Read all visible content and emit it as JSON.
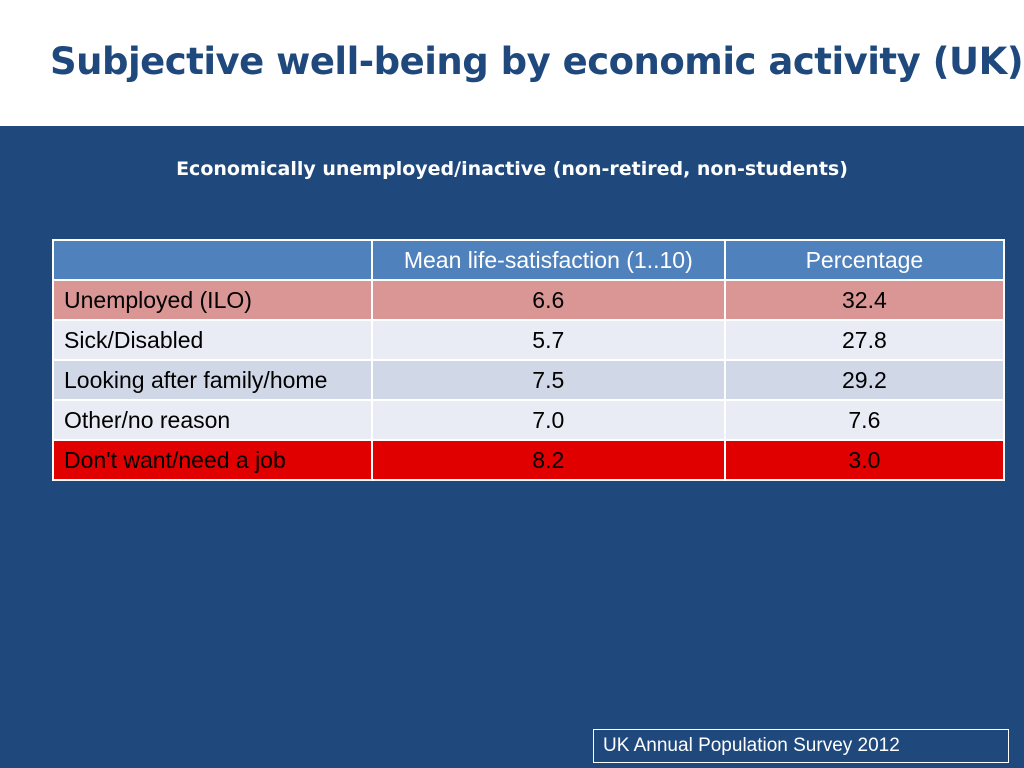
{
  "slide": {
    "title": "Subjective well-being by economic activity (UK)",
    "subtitle": "Economically unemployed/inactive (non-retired, non-students)",
    "source": "UK Annual Population Survey 2012"
  },
  "table": {
    "headers": [
      "",
      "Mean life-satisfaction (1..10)",
      "Percentage"
    ],
    "rows": [
      {
        "category": "Unemployed (ILO)",
        "mean": "6.6",
        "percentage": "32.4"
      },
      {
        "category": "Sick/Disabled",
        "mean": "5.7",
        "percentage": "27.8"
      },
      {
        "category": "Looking after family/home",
        "mean": "7.5",
        "percentage": "29.2"
      },
      {
        "category": "Other/no reason",
        "mean": "7.0",
        "percentage": "7.6"
      },
      {
        "category": "Don't want/need a job",
        "mean": "8.2",
        "percentage": "3.0"
      }
    ]
  },
  "colors": {
    "title_text": "#1f497d",
    "body_background": "#1f497d",
    "header_row": "#4f81bd",
    "row_unemployed": "#d99694",
    "row_light": "#e9ecf5",
    "row_mid": "#d0d8e8",
    "row_highlight": "#e00000"
  }
}
